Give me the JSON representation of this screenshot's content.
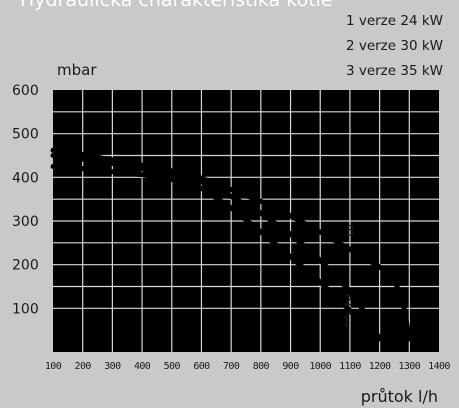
{
  "chart_data": {
    "type": "line",
    "title": "Hydraulická charakteristika kotle",
    "ylabel": "mbar",
    "xlabel": "průtok l/h",
    "xlim": [
      100,
      1400
    ],
    "ylim": [
      0,
      600
    ],
    "x_ticks": [
      100,
      200,
      300,
      400,
      500,
      600,
      700,
      800,
      900,
      1000,
      1100,
      1200,
      1300,
      1400
    ],
    "y_ticks": [
      100,
      200,
      300,
      400,
      500,
      600
    ],
    "grid": true,
    "legend": [
      "1 verze 24 kW",
      "2 verze 30 kW",
      "3 verze 35 kW"
    ],
    "series": [
      {
        "name": "1",
        "line_color": "#000000",
        "points": [
          [
            100,
            425
          ],
          [
            200,
            420
          ],
          [
            300,
            413
          ],
          [
            400,
            406
          ],
          [
            500,
            395
          ],
          [
            600,
            375
          ],
          [
            700,
            330
          ],
          [
            800,
            275
          ],
          [
            900,
            218
          ],
          [
            1000,
            160
          ],
          [
            1100,
            95
          ],
          [
            1150,
            55
          ],
          [
            1190,
            25
          ]
        ]
      },
      {
        "name": "2",
        "line_color": "#000000",
        "points": [
          [
            100,
            450
          ],
          [
            200,
            442
          ],
          [
            300,
            432
          ],
          [
            400,
            420
          ],
          [
            500,
            407
          ],
          [
            600,
            390
          ],
          [
            700,
            356
          ],
          [
            800,
            318
          ],
          [
            900,
            270
          ],
          [
            1000,
            210
          ],
          [
            1100,
            140
          ],
          [
            1150,
            90
          ],
          [
            1200,
            30
          ]
        ]
      },
      {
        "name": "3",
        "line_color": "#000000",
        "points": [
          [
            100,
            462
          ],
          [
            200,
            452
          ],
          [
            300,
            440
          ],
          [
            400,
            428
          ],
          [
            500,
            415
          ],
          [
            600,
            398
          ],
          [
            700,
            372
          ],
          [
            800,
            345
          ],
          [
            900,
            312
          ],
          [
            1000,
            275
          ],
          [
            1100,
            235
          ],
          [
            1200,
            195
          ],
          [
            1250,
            165
          ],
          [
            1280,
            110
          ],
          [
            1300,
            30
          ]
        ]
      }
    ]
  }
}
